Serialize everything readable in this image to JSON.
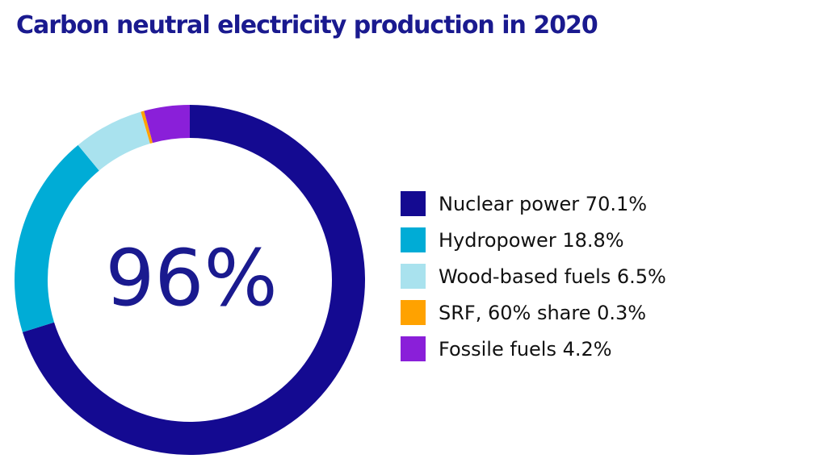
{
  "title": "Carbon neutral electricity production in 2020",
  "center_label": "96%",
  "chart_data": {
    "type": "pie",
    "title": "Carbon neutral electricity production in 2020",
    "center_text": "96%",
    "donut": true,
    "start": "12 o'clock, clockwise",
    "legend_position": "right",
    "series": [
      {
        "name": "Nuclear power",
        "value": 70.1,
        "color": "#140A91"
      },
      {
        "name": "Hydropower",
        "value": 18.8,
        "color": "#00ACD6"
      },
      {
        "name": "Wood-based fuels",
        "value": 6.5,
        "color": "#A9E2EE"
      },
      {
        "name": "SRF, 60% share",
        "value": 0.3,
        "color": "#FFA200"
      },
      {
        "name": "Fossile fuels",
        "value": 4.2,
        "color": "#8A1FD9"
      }
    ],
    "legend": [
      "Nuclear power 70.1%",
      "Hydropower 18.8%",
      "Wood-based fuels 6.5%",
      "SRF, 60% share 0.3%",
      "Fossile fuels 4.2%"
    ]
  }
}
